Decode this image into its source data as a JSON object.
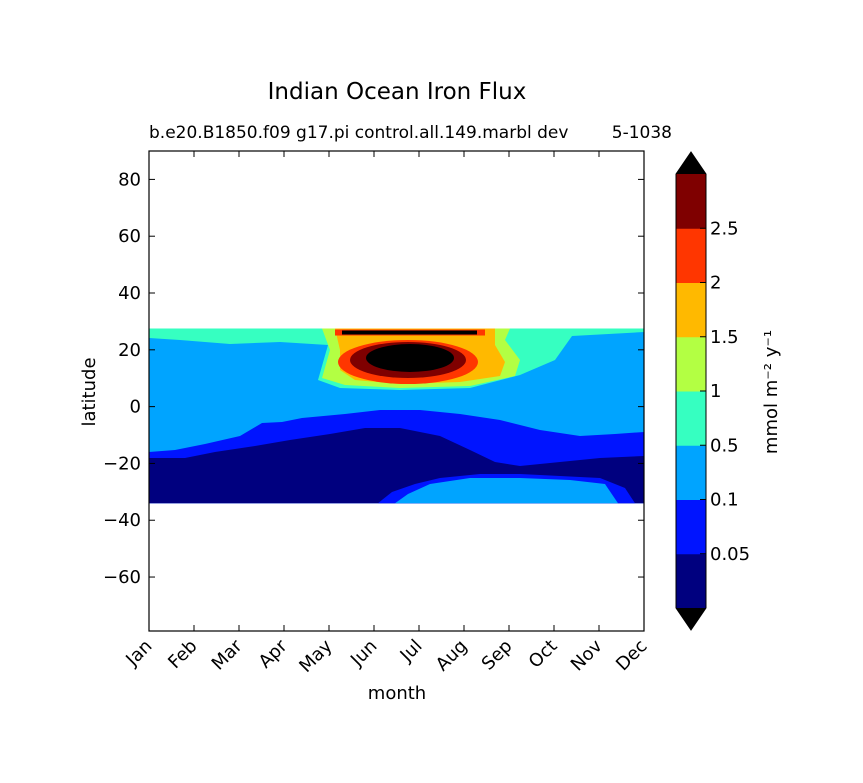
{
  "figure": {
    "title": "Indian Ocean Iron Flux",
    "subtitle_left": "b.e20.B1850.f09 g17.pi control.all.149.marbl dev",
    "subtitle_right": "5-1038"
  },
  "chart_data": {
    "type": "heatmap",
    "plot_style": "filled contour",
    "xlabel": "month",
    "ylabel": "latitude",
    "x_categories": [
      "Jan",
      "Feb",
      "Mar",
      "Apr",
      "May",
      "Jun",
      "Jul",
      "Aug",
      "Sep",
      "Oct",
      "Nov",
      "Dec"
    ],
    "y_ticks": [
      80,
      60,
      40,
      20,
      0,
      -20,
      -40,
      -60
    ],
    "ylim": [
      -79,
      90
    ],
    "data_lat_range": [
      -34,
      27.5
    ],
    "colorbar": {
      "label": "mmol m⁻² y⁻¹",
      "tick_labels": [
        "0.05",
        "0.1",
        "0.5",
        "1",
        "1.5",
        "2",
        "2.5"
      ],
      "levels": [
        0.01,
        0.05,
        0.1,
        0.5,
        1,
        1.5,
        2,
        2.5,
        3
      ],
      "colors": [
        "#00007f",
        "#0014ff",
        "#00a4ff",
        "#36ffc1",
        "#b3ff43",
        "#ffb900",
        "#ff3600",
        "#7f0000"
      ],
      "extend_min_color": "#000000",
      "extend_max_color": "#000000"
    },
    "features": [
      {
        "name": "monsoon maximum",
        "month": "Jul",
        "lat": 17,
        "value": ">2.5"
      },
      {
        "name": "northern band",
        "months": [
          "Jun",
          "Jul"
        ],
        "lat": 26,
        "value": ">2.5"
      },
      {
        "name": "southern minimum",
        "lat_range": [
          -34,
          -18
        ],
        "value": "<0.05"
      }
    ]
  }
}
